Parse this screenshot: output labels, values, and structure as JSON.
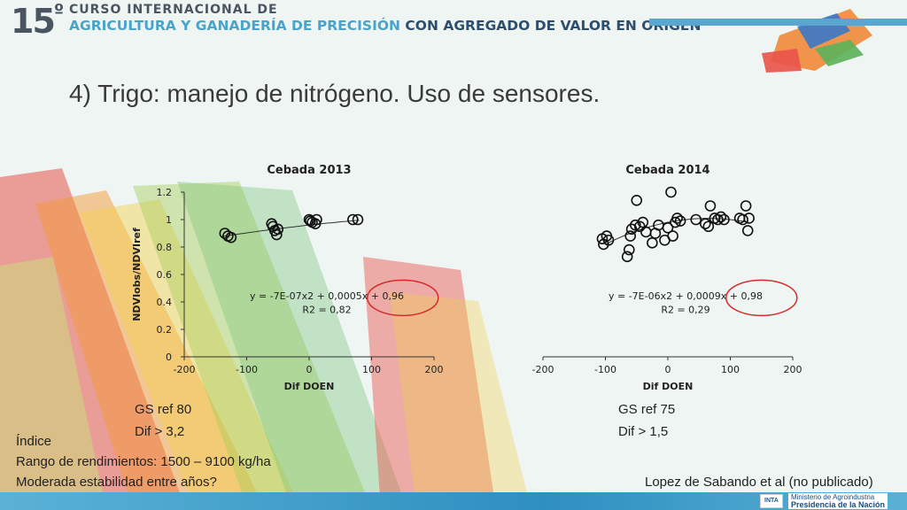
{
  "header": {
    "badge_number": "15",
    "badge_suffix": "º",
    "line1": "CURSO INTERNACIONAL DE",
    "line2_a": "AGRICULTURA Y GANADERÍA DE PRECISIÓN",
    "line2_b": "CON AGREGADO DE VALOR EN ORIGEN"
  },
  "slide_title": "4) Trigo: manejo de nitrógeno. Uso de sensores.",
  "chart_data": [
    {
      "type": "scatter",
      "title": "Cebada 2013",
      "xlabel": "Dif  DOEN",
      "ylabel": "NDVIobs/NDVIref",
      "xlim": [
        -200,
        200
      ],
      "ylim": [
        0,
        1.2
      ],
      "xticks": [
        "-200",
        "-100",
        "0",
        "100",
        "200"
      ],
      "yticks": [
        "0",
        "0.2",
        "0.4",
        "0.6",
        "0.8",
        "1",
        "1.2"
      ],
      "equation": "y = -7E-07x2 + 0,0005x + 0,96",
      "r2": "R2 = 0,82",
      "trend": {
        "a": -7e-07,
        "b": 0.0005,
        "c": 0.96,
        "xrange": [
          -140,
          80
        ]
      },
      "points": [
        [
          -135,
          0.9
        ],
        [
          -130,
          0.88
        ],
        [
          -125,
          0.87
        ],
        [
          -60,
          0.97
        ],
        [
          -58,
          0.95
        ],
        [
          -55,
          0.92
        ],
        [
          -52,
          0.89
        ],
        [
          -50,
          0.93
        ],
        [
          0,
          1.0
        ],
        [
          2,
          0.99
        ],
        [
          5,
          0.98
        ],
        [
          10,
          0.97
        ],
        [
          12,
          1.0
        ],
        [
          70,
          1.0
        ],
        [
          78,
          1.0
        ]
      ],
      "highlight_circle": true
    },
    {
      "type": "scatter",
      "title": "Cebada 2014",
      "xlabel": "Dif  DOEN",
      "ylabel": "",
      "xlim": [
        -200,
        200
      ],
      "ylim": [
        0,
        1.2
      ],
      "xticks": [
        "-200",
        "-100",
        "0",
        "100",
        "200"
      ],
      "yticks": [],
      "equation": "y = -7E-06x2 + 0,0009x + 0,98",
      "r2": "R2 = 0,29",
      "trend": {
        "a": -7e-06,
        "b": 0.0009,
        "c": 0.98,
        "xrange": [
          -100,
          130
        ]
      },
      "points": [
        [
          -105,
          0.86
        ],
        [
          -103,
          0.82
        ],
        [
          -95,
          0.85
        ],
        [
          -98,
          0.88
        ],
        [
          -65,
          0.73
        ],
        [
          -62,
          0.78
        ],
        [
          -60,
          0.88
        ],
        [
          -58,
          0.93
        ],
        [
          -52,
          0.96
        ],
        [
          -50,
          1.14
        ],
        [
          -45,
          0.95
        ],
        [
          -40,
          0.98
        ],
        [
          -35,
          0.91
        ],
        [
          -25,
          0.83
        ],
        [
          -20,
          0.9
        ],
        [
          -15,
          0.96
        ],
        [
          -5,
          0.85
        ],
        [
          0,
          0.94
        ],
        [
          5,
          1.2
        ],
        [
          8,
          0.88
        ],
        [
          12,
          0.98
        ],
        [
          15,
          1.01
        ],
        [
          20,
          0.99
        ],
        [
          45,
          1.0
        ],
        [
          60,
          0.97
        ],
        [
          65,
          0.95
        ],
        [
          68,
          1.1
        ],
        [
          75,
          1.01
        ],
        [
          80,
          1.0
        ],
        [
          85,
          1.02
        ],
        [
          90,
          1.0
        ],
        [
          115,
          1.01
        ],
        [
          120,
          1.0
        ],
        [
          125,
          1.1
        ],
        [
          128,
          0.92
        ],
        [
          130,
          1.01
        ]
      ],
      "highlight_circle": true
    }
  ],
  "notes": {
    "left_ref": "GS ref 80",
    "left_dif": "Dif > 3,2",
    "right_ref": "GS ref 75",
    "right_dif": "Dif > 1,5",
    "indice": "Índice",
    "rango": "Rango de rendimientos: 1500 – 9100 kg/ha",
    "estabilidad": "Moderada estabilidad entre años?",
    "citation": "Lopez de Sabando et al (no publicado)"
  },
  "footer": {
    "inta": "INTA",
    "ministry_line1": "Ministerio de Agroindustria",
    "ministry_line2": "Presidencia de la Nación"
  },
  "colors": {
    "accent_blue": "#4aa3c9",
    "dark_blue": "#2e4e6e",
    "highlight_red": "#d42a2a"
  }
}
